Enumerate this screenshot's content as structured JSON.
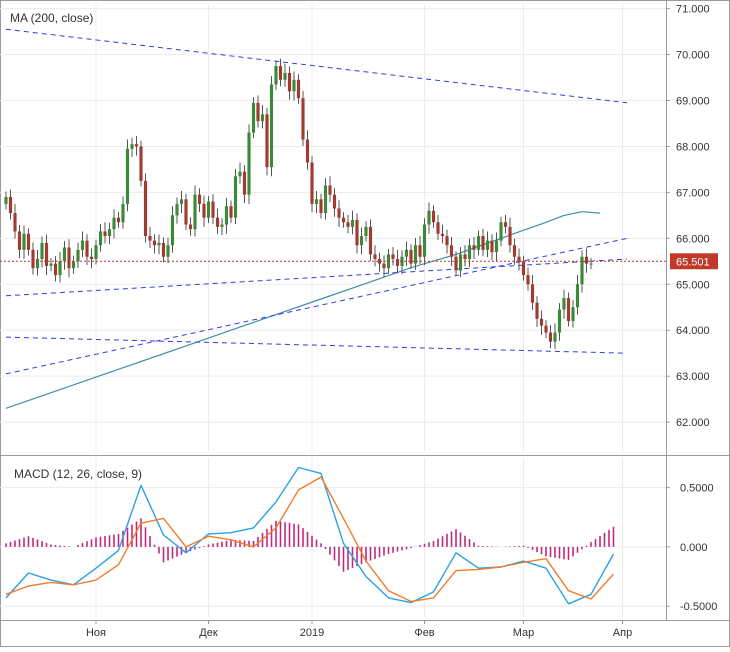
{
  "chart_data": [
    {
      "type": "candlestick",
      "pane": "price",
      "indicator_label": "MA (200, close)",
      "y_ticks": [
        71.0,
        70.0,
        69.0,
        68.0,
        67.0,
        66.0,
        65.0,
        64.0,
        63.0,
        62.0
      ],
      "y_tick_labels": [
        "71.000",
        "70.000",
        "69.000",
        "68.000",
        "67.000",
        "66.000",
        "65.000",
        "64.000",
        "63.000",
        "62.000"
      ],
      "y_range": [
        61.35,
        71.1
      ],
      "x_range": [
        0,
        138
      ],
      "current_price": 65.501,
      "current_price_label": "65.501",
      "colors": {
        "up": "#3a8a3a",
        "down": "#a33a2f",
        "ma": "#3f8fae",
        "trend": "#2f3fe0",
        "price_line": "#c0392b"
      },
      "closes": [
        66.9,
        66.55,
        66.15,
        65.75,
        66.1,
        65.75,
        65.35,
        65.55,
        65.9,
        65.4,
        65.45,
        65.2,
        65.5,
        65.8,
        65.35,
        65.5,
        65.75,
        65.95,
        65.6,
        65.55,
        65.85,
        66.15,
        66.05,
        66.2,
        66.45,
        66.35,
        66.75,
        67.95,
        68.05,
        68.0,
        67.25,
        66.05,
        65.95,
        65.85,
        65.9,
        65.6,
        65.85,
        66.5,
        66.75,
        66.85,
        66.3,
        66.2,
        66.95,
        66.75,
        66.45,
        66.8,
        66.45,
        66.25,
        66.3,
        66.7,
        66.45,
        67.35,
        67.45,
        66.95,
        68.3,
        68.95,
        68.55,
        68.7,
        67.55,
        69.35,
        69.75,
        69.45,
        69.6,
        69.2,
        69.45,
        69.05,
        68.15,
        67.65,
        66.75,
        66.85,
        66.55,
        67.15,
        66.95,
        66.65,
        66.45,
        66.35,
        66.25,
        66.4,
        65.85,
        66.05,
        66.25,
        65.65,
        65.55,
        65.45,
        65.35,
        65.65,
        65.55,
        65.4,
        65.6,
        65.75,
        65.45,
        65.85,
        65.6,
        66.3,
        66.6,
        66.35,
        66.1,
        66.05,
        65.85,
        65.6,
        65.3,
        65.65,
        65.55,
        65.85,
        65.75,
        66.05,
        65.75,
        65.95,
        65.7,
        65.95,
        66.35,
        66.25,
        65.85,
        65.6,
        65.5,
        65.2,
        65.0,
        64.6,
        64.25,
        64.1,
        63.95,
        63.75,
        63.95,
        64.45,
        64.7,
        64.2,
        64.5,
        65.0,
        65.6,
        65.45,
        65.45
      ],
      "ma200": [
        62.3,
        62.64,
        62.98,
        63.32,
        63.66,
        64.0,
        64.34,
        64.68,
        65.02,
        65.36,
        65.65,
        65.79,
        65.93,
        66.07,
        66.21,
        66.35,
        66.5,
        66.58,
        66.55
      ],
      "ma200_x": [
        0,
        10,
        20,
        30,
        40,
        50,
        60,
        70,
        80,
        90,
        100,
        104,
        108,
        112,
        116,
        120,
        124,
        128,
        132
      ],
      "trendlines": [
        {
          "from": [
            0,
            70.55
          ],
          "to": [
            138,
            68.95
          ]
        },
        {
          "from": [
            0,
            64.75
          ],
          "to": [
            138,
            65.55
          ]
        },
        {
          "from": [
            0,
            63.85
          ],
          "to": [
            138,
            63.5
          ]
        },
        {
          "from": [
            0,
            63.05
          ],
          "to": [
            138,
            66.0
          ]
        }
      ]
    },
    {
      "type": "line",
      "pane": "macd",
      "indicator_label": "MACD (12, 26, close, 9)",
      "y_ticks": [
        0.5,
        0.0,
        -0.5
      ],
      "y_tick_labels": [
        "0.5000",
        "0.000",
        "-0.5000"
      ],
      "y_range": [
        -0.6,
        0.75
      ],
      "x_range": [
        0,
        138
      ],
      "series": [
        {
          "name": "MACD",
          "color": "#2aa1e6",
          "x": [
            0,
            5,
            10,
            15,
            20,
            25,
            30,
            35,
            40,
            45,
            50,
            55,
            60,
            65,
            70,
            75,
            80,
            85,
            90,
            95,
            100,
            105,
            110,
            115,
            120,
            125,
            130,
            135
          ],
          "values": [
            -0.43,
            -0.22,
            -0.28,
            -0.32,
            -0.18,
            -0.03,
            0.52,
            0.1,
            -0.05,
            0.11,
            0.12,
            0.16,
            0.38,
            0.67,
            0.62,
            0.03,
            -0.25,
            -0.43,
            -0.47,
            -0.38,
            -0.05,
            -0.18,
            -0.17,
            -0.12,
            -0.18,
            -0.48,
            -0.4,
            -0.06
          ]
        },
        {
          "name": "Signal",
          "color": "#f07d2d",
          "x": [
            0,
            5,
            10,
            15,
            20,
            25,
            30,
            35,
            40,
            45,
            50,
            55,
            60,
            65,
            70,
            75,
            80,
            85,
            90,
            95,
            100,
            105,
            110,
            115,
            120,
            125,
            130,
            135
          ],
          "values": [
            -0.4,
            -0.33,
            -0.3,
            -0.32,
            -0.28,
            -0.15,
            0.2,
            0.24,
            0.0,
            0.09,
            0.06,
            0.0,
            0.16,
            0.48,
            0.59,
            0.24,
            -0.12,
            -0.37,
            -0.46,
            -0.43,
            -0.2,
            -0.19,
            -0.17,
            -0.13,
            -0.1,
            -0.37,
            -0.44,
            -0.23
          ]
        },
        {
          "name": "Histogram",
          "color": "#c02a7d",
          "x": [
            0,
            5,
            10,
            15,
            20,
            25,
            30,
            35,
            40,
            45,
            50,
            55,
            60,
            65,
            70,
            75,
            80,
            85,
            90,
            95,
            100,
            105,
            110,
            115,
            120,
            125,
            130,
            135
          ],
          "values": [
            0.03,
            0.09,
            0.02,
            0.0,
            0.08,
            0.11,
            0.24,
            -0.13,
            -0.05,
            0.02,
            0.06,
            0.05,
            0.22,
            0.19,
            0.03,
            -0.21,
            -0.13,
            -0.06,
            -0.01,
            0.05,
            0.15,
            0.01,
            0.0,
            0.01,
            -0.08,
            -0.11,
            0.04,
            0.17
          ]
        }
      ]
    }
  ],
  "x_axis": {
    "ticks": [
      {
        "x": 20,
        "label": "Ноя"
      },
      {
        "x": 45,
        "label": "Дек"
      },
      {
        "x": 68,
        "label": "2019"
      },
      {
        "x": 93,
        "label": "Фев"
      },
      {
        "x": 115,
        "label": "Мар"
      },
      {
        "x": 137,
        "label": "Апр"
      }
    ]
  }
}
